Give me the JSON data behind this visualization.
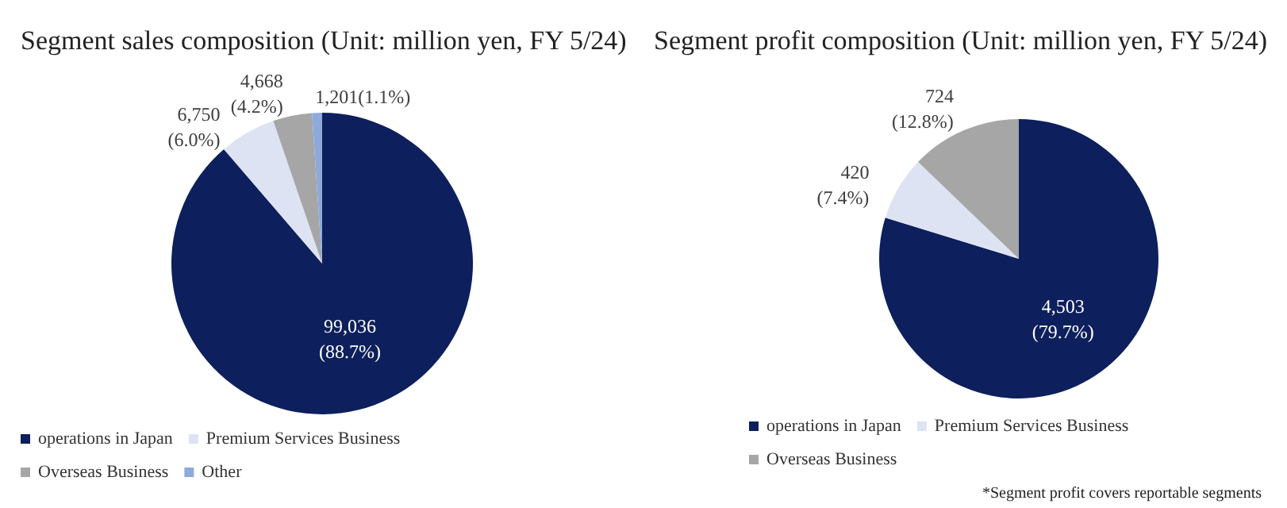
{
  "chart_data": [
    {
      "type": "pie",
      "title": "Segment sales composition (Unit: million yen, FY 5/24)",
      "categories": [
        "operations in Japan",
        "Premium Services Business",
        "Overseas Business",
        "Other"
      ],
      "values": [
        99036,
        6750,
        4668,
        1201
      ],
      "colors": [
        "#0d1f5c",
        "#dde3f3",
        "#a6a6a6",
        "#8eaadb"
      ],
      "value_labels": [
        "99,036\n(88.7%)",
        "6,750\n(6.0%)",
        "4,668\n(4.2%)",
        "1,201(1.1%)"
      ],
      "legend": "bottom"
    },
    {
      "type": "pie",
      "title": "Segment profit composition (Unit: million yen, FY 5/24)",
      "categories": [
        "operations in Japan",
        "Premium Services Business",
        "Overseas Business"
      ],
      "values": [
        4503,
        420,
        724
      ],
      "colors": [
        "#0d1f5c",
        "#dde3f3",
        "#a6a6a6"
      ],
      "value_labels": [
        "4,503\n(79.7%)",
        "420\n(7.4%)",
        "724\n(12.8%)"
      ],
      "legend": "bottom",
      "annotations": [
        "*Segment profit covers reportable segments"
      ]
    }
  ]
}
